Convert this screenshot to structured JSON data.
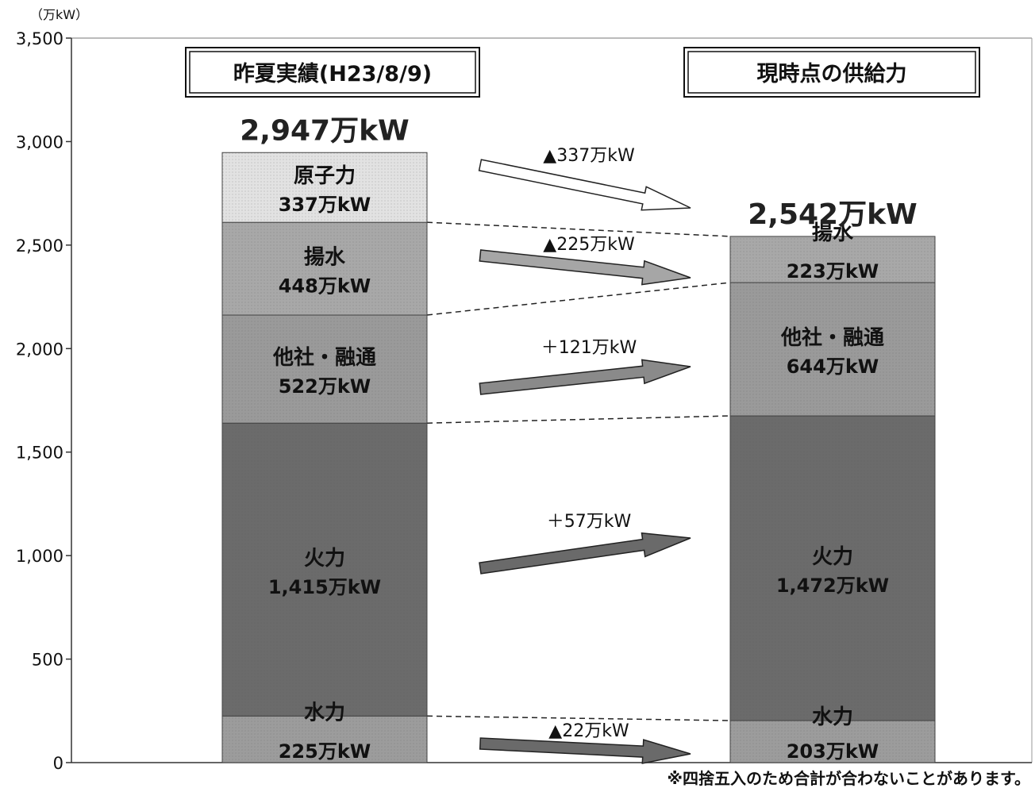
{
  "chart_data": {
    "type": "bar",
    "unit_label": "（万kW）",
    "ylim": [
      0,
      3500
    ],
    "yticks": [
      {
        "value": 0,
        "label": "0"
      },
      {
        "value": 500,
        "label": "500"
      },
      {
        "value": 1000,
        "label": "1,000"
      },
      {
        "value": 1500,
        "label": "1,500"
      },
      {
        "value": 2000,
        "label": "2,000"
      },
      {
        "value": 2500,
        "label": "2,500"
      },
      {
        "value": 3000,
        "label": "3,000"
      },
      {
        "value": 3500,
        "label": "3,500"
      }
    ],
    "columns": [
      {
        "title": "昨夏実績(H23/8/9)",
        "total": 2947,
        "total_label": "2,947万kW",
        "segments": [
          {
            "name": "水力",
            "value": 225,
            "value_label": "225万kW",
            "color": "#9c9c9c"
          },
          {
            "name": "火力",
            "value": 1415,
            "value_label": "1,415万kW",
            "color": "#6b6b6b"
          },
          {
            "name": "他社・融通",
            "value": 522,
            "value_label": "522万kW",
            "color": "#9a9a9a"
          },
          {
            "name": "揚水",
            "value": 448,
            "value_label": "448万kW",
            "color": "#a8a8a8"
          },
          {
            "name": "原子力",
            "value": 337,
            "value_label": "337万kW",
            "color": "#e2e2e2"
          }
        ]
      },
      {
        "title": "現時点の供給力",
        "total": 2542,
        "total_label": "2,542万kW",
        "segments": [
          {
            "name": "水力",
            "value": 203,
            "value_label": "203万kW",
            "color": "#9c9c9c"
          },
          {
            "name": "火力",
            "value": 1472,
            "value_label": "1,472万kW",
            "color": "#6b6b6b"
          },
          {
            "name": "他社・融通",
            "value": 644,
            "value_label": "644万kW",
            "color": "#9a9a9a"
          },
          {
            "name": "揚水",
            "value": 223,
            "value_label": "223万kW",
            "color": "#a8a8a8"
          }
        ]
      }
    ],
    "changes": [
      {
        "segment": "原子力",
        "label": "▲337万kW"
      },
      {
        "segment": "揚水",
        "label": "▲225万kW"
      },
      {
        "segment": "他社・融通",
        "label": "＋121万kW"
      },
      {
        "segment": "火力",
        "label": "＋57万kW"
      },
      {
        "segment": "水力",
        "label": "▲22万kW"
      }
    ],
    "footnote": "※四捨五入のため合計が合わないことがあります。"
  }
}
